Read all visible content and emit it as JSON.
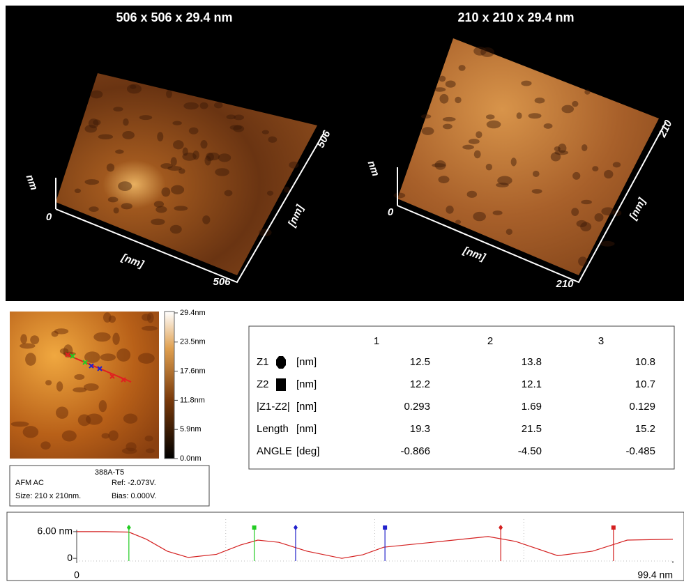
{
  "renders": [
    {
      "title": "506 x 506 x 29.4 nm",
      "x_label": "[nm]",
      "y_label": "[nm]",
      "z_label": "nm",
      "x_max": "506",
      "y_max": "506",
      "origin": "0"
    },
    {
      "title": "210 x 210 x 29.4 nm",
      "x_label": "[nm]",
      "y_label": "[nm]",
      "z_label": "nm",
      "x_max": "210",
      "y_max": "210",
      "origin": "0"
    }
  ],
  "colorbar": {
    "ticks": [
      "29.4nm",
      "23.5nm",
      "17.6nm",
      "11.8nm",
      "5.9nm",
      "0.0nm"
    ]
  },
  "info": {
    "name": "388A-T5",
    "mode": "AFM AC",
    "ref": "Ref: -2.073V.",
    "size": "Size: 210 x 210nm.",
    "bias": "Bias: 0.000V."
  },
  "table": {
    "header": [
      "1",
      "2",
      "3"
    ],
    "rows": [
      [
        "Z1",
        "[nm]",
        "12.5",
        "13.8",
        "10.8"
      ],
      [
        "Z2",
        "[nm]",
        "12.2",
        "12.1",
        "10.7"
      ],
      [
        "|Z1-Z2|",
        "[nm]",
        "0.293",
        "1.69",
        "0.129"
      ],
      [
        "Length",
        "[nm]",
        "19.3",
        "21.5",
        "15.2"
      ],
      [
        "ANGLE",
        "[deg]",
        "-0.866",
        "-4.50",
        "-0.485"
      ]
    ]
  },
  "chart_data": {
    "type": "line",
    "color": "#d42020",
    "x": [
      0,
      4.7,
      8.7,
      11.6,
      15.1,
      18.6,
      23.3,
      27.3,
      30.2,
      33.7,
      38.4,
      44.2,
      47.7,
      51.2,
      59.3,
      68.6,
      73.2,
      80.2,
      86.0,
      91.8,
      99.4
    ],
    "values": [
      6.0,
      6.0,
      5.9,
      4.3,
      1.6,
      0.2,
      0.9,
      3.0,
      4.1,
      3.6,
      1.6,
      0.0,
      0.8,
      2.5,
      3.6,
      4.9,
      3.8,
      0.6,
      1.6,
      4.1,
      4.3
    ],
    "xlim": [
      0,
      99.4
    ],
    "ylim": [
      -0.6,
      8.8
    ],
    "xticks": [
      0,
      {
        "value": 99.4,
        "label": "99.4 nm"
      }
    ],
    "yticks": [
      {
        "value": 6,
        "label": "6.00 nm"
      },
      0
    ],
    "cursors": [
      {
        "x": 8.7,
        "color": "#22cc22",
        "marker": "diamond"
      },
      {
        "x": 29.6,
        "color": "#22cc22",
        "marker": "square"
      },
      {
        "x": 36.5,
        "color": "#2222cc",
        "marker": "diamond"
      },
      {
        "x": 51.4,
        "color": "#2222cc",
        "marker": "square"
      },
      {
        "x": 70.7,
        "color": "#d42020",
        "marker": "diamond"
      },
      {
        "x": 89.5,
        "color": "#d42020",
        "marker": "square"
      }
    ]
  }
}
